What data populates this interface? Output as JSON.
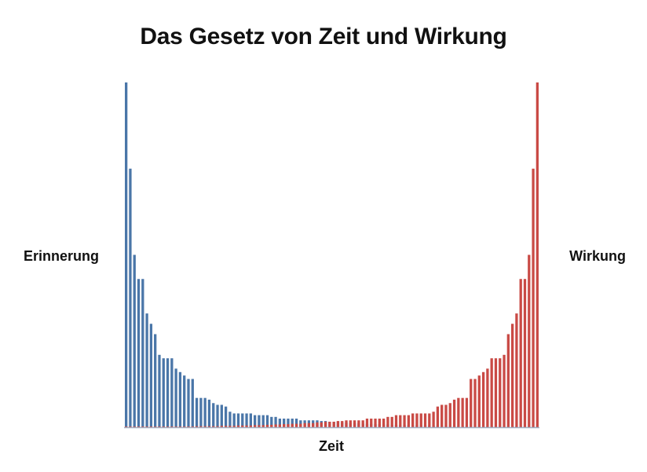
{
  "chart_data": {
    "type": "bar",
    "title": "Das Gesetz von Zeit und Wirkung",
    "xlabel": "Zeit",
    "ylabel_left": "Erinnerung",
    "ylabel_right": "Wirkung",
    "ylim": [
      0,
      100
    ],
    "grid": false,
    "legend": "none",
    "series": [
      {
        "color": "#4a76a8",
        "values": [
          100,
          75,
          50,
          43,
          43,
          33,
          30,
          27,
          21,
          20,
          20,
          20,
          17,
          16,
          15,
          14,
          14,
          8.5,
          8.5,
          8.5,
          8,
          7,
          6.5,
          6.5,
          6,
          4.5,
          4,
          4,
          4,
          4,
          4,
          3.5,
          3.5,
          3.5,
          3.5,
          3,
          3,
          2.5,
          2.5,
          2.5,
          2.5,
          2.5,
          2,
          2,
          2,
          2,
          2,
          1.8,
          1.8,
          1.6,
          1.6,
          1.6,
          1.4,
          1.4,
          1.2,
          1.2,
          1.2,
          1,
          1,
          1,
          0.9,
          0.9,
          0.8,
          0.8,
          0.7,
          0.7,
          0.6,
          0.6,
          0.6,
          0.5,
          0.5,
          0.5,
          0.5,
          0.4,
          0.4,
          0.4,
          0.4,
          0.3,
          0.3,
          0.3,
          0.3,
          0.3,
          0.3,
          0.2,
          0.2,
          0.2,
          0.2,
          0.2,
          0.2,
          0.2,
          0.2,
          0.1,
          0.1,
          0.1,
          0.1,
          0.1,
          0.1,
          0.1,
          0.1,
          0.1
        ]
      },
      {
        "color": "#c94a45",
        "values": [
          0.1,
          0.1,
          0.1,
          0.1,
          0.1,
          0.1,
          0.1,
          0.1,
          0.1,
          0.2,
          0.2,
          0.2,
          0.2,
          0.2,
          0.2,
          0.2,
          0.2,
          0.3,
          0.3,
          0.3,
          0.3,
          0.3,
          0.3,
          0.4,
          0.4,
          0.4,
          0.4,
          0.5,
          0.5,
          0.5,
          0.5,
          0.6,
          0.6,
          0.6,
          0.7,
          0.7,
          0.8,
          0.8,
          0.9,
          0.9,
          1,
          1,
          1,
          1.2,
          1.2,
          1.2,
          1.4,
          1.4,
          1.6,
          1.6,
          1.6,
          1.8,
          1.8,
          2,
          2,
          2,
          2,
          2,
          2.5,
          2.5,
          2.5,
          2.5,
          2.5,
          3,
          3,
          3.5,
          3.5,
          3.5,
          3.5,
          4,
          4,
          4,
          4,
          4,
          4.5,
          6,
          6.5,
          6.5,
          7,
          8,
          8.5,
          8.5,
          8.5,
          14,
          14,
          15,
          16,
          17,
          20,
          20,
          20,
          21,
          27,
          30,
          33,
          43,
          43,
          50,
          75,
          100
        ]
      }
    ]
  }
}
